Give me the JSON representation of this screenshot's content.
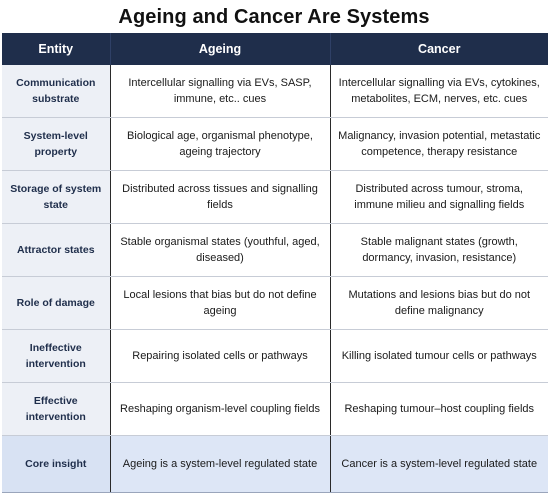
{
  "title": "Ageing and Cancer Are Systems",
  "columns": [
    "Entity",
    "Ageing",
    "Cancer"
  ],
  "rows": [
    {
      "entity": "Communication substrate",
      "ageing": "Intercellular signalling via EVs, SASP, immune, etc.. cues",
      "cancer": "Intercellular signalling via EVs, cytokines, metabolites, ECM, nerves, etc. cues"
    },
    {
      "entity": "System-level property",
      "ageing": "Biological age, organismal phenotype, ageing trajectory",
      "cancer": "Malignancy, invasion potential, metastatic competence, therapy resistance"
    },
    {
      "entity": "Storage of system state",
      "ageing": "Distributed across tissues and signalling fields",
      "cancer": "Distributed across tumour, stroma, immune milieu and signalling fields"
    },
    {
      "entity": "Attractor states",
      "ageing": "Stable organismal states (youthful, aged, diseased)",
      "cancer": "Stable malignant states (growth, dormancy, invasion, resistance)"
    },
    {
      "entity": "Role of damage",
      "ageing": "Local lesions that bias but do not define ageing",
      "cancer": "Mutations and lesions bias but do not define malignancy"
    },
    {
      "entity": "Ineffective intervention",
      "ageing": "Repairing isolated cells or pathways",
      "cancer": "Killing isolated tumour cells or pathways"
    },
    {
      "entity": "Effective intervention",
      "ageing": "Reshaping organism-level coupling fields",
      "cancer": "Reshaping tumour–host coupling fields"
    },
    {
      "entity": "Core insight",
      "ageing": "Ageing is a system-level regulated state",
      "cancer": "Cancer is a system-level regulated state"
    }
  ],
  "colors": {
    "header_bg": "#1f2e4b",
    "entity_bg": "#edf0f6",
    "highlight_bg": "#dde6f6"
  }
}
